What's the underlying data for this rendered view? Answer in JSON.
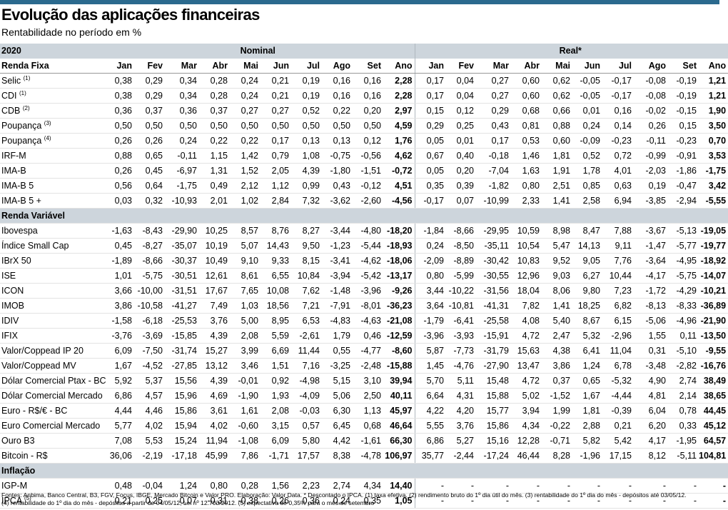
{
  "title": "Evolução das aplicações financeiras",
  "subtitle": "Rentabilidade no período em %",
  "year_label": "2020",
  "group_nominal": "Nominal",
  "group_real": "Real*",
  "months": [
    "Jan",
    "Fev",
    "Mar",
    "Abr",
    "Mai",
    "Jun",
    "Jul",
    "Ago",
    "Set",
    "Ano"
  ],
  "sections": [
    {
      "title": "Renda Fixa",
      "rows": [
        {
          "label": "Selic",
          "note": "(1)",
          "nominal": [
            "0,38",
            "0,29",
            "0,34",
            "0,28",
            "0,24",
            "0,21",
            "0,19",
            "0,16",
            "0,16",
            "2,28"
          ],
          "real": [
            "0,17",
            "0,04",
            "0,27",
            "0,60",
            "0,62",
            "-0,05",
            "-0,17",
            "-0,08",
            "-0,19",
            "1,21"
          ]
        },
        {
          "label": "CDI",
          "note": "(1)",
          "nominal": [
            "0,38",
            "0,29",
            "0,34",
            "0,28",
            "0,24",
            "0,21",
            "0,19",
            "0,16",
            "0,16",
            "2,28"
          ],
          "real": [
            "0,17",
            "0,04",
            "0,27",
            "0,60",
            "0,62",
            "-0,05",
            "-0,17",
            "-0,08",
            "-0,19",
            "1,21"
          ]
        },
        {
          "label": "CDB",
          "note": "(2)",
          "nominal": [
            "0,36",
            "0,37",
            "0,36",
            "0,37",
            "0,27",
            "0,27",
            "0,52",
            "0,22",
            "0,20",
            "2,97"
          ],
          "real": [
            "0,15",
            "0,12",
            "0,29",
            "0,68",
            "0,66",
            "0,01",
            "0,16",
            "-0,02",
            "-0,15",
            "1,90"
          ]
        },
        {
          "label": "Poupança",
          "note": "(3)",
          "nominal": [
            "0,50",
            "0,50",
            "0,50",
            "0,50",
            "0,50",
            "0,50",
            "0,50",
            "0,50",
            "0,50",
            "4,59"
          ],
          "real": [
            "0,29",
            "0,25",
            "0,43",
            "0,81",
            "0,88",
            "0,24",
            "0,14",
            "0,26",
            "0,15",
            "3,50"
          ]
        },
        {
          "label": "Poupança",
          "note": "(4)",
          "nominal": [
            "0,26",
            "0,26",
            "0,24",
            "0,22",
            "0,22",
            "0,17",
            "0,13",
            "0,13",
            "0,12",
            "1,76"
          ],
          "real": [
            "0,05",
            "0,01",
            "0,17",
            "0,53",
            "0,60",
            "-0,09",
            "-0,23",
            "-0,11",
            "-0,23",
            "0,70"
          ]
        },
        {
          "label": "IRF-M",
          "note": "",
          "nominal": [
            "0,88",
            "0,65",
            "-0,11",
            "1,15",
            "1,42",
            "0,79",
            "1,08",
            "-0,75",
            "-0,56",
            "4,62"
          ],
          "real": [
            "0,67",
            "0,40",
            "-0,18",
            "1,46",
            "1,81",
            "0,52",
            "0,72",
            "-0,99",
            "-0,91",
            "3,53"
          ]
        },
        {
          "label": "IMA-B",
          "note": "",
          "nominal": [
            "0,26",
            "0,45",
            "-6,97",
            "1,31",
            "1,52",
            "2,05",
            "4,39",
            "-1,80",
            "-1,51",
            "-0,72"
          ],
          "real": [
            "0,05",
            "0,20",
            "-7,04",
            "1,63",
            "1,91",
            "1,78",
            "4,01",
            "-2,03",
            "-1,86",
            "-1,75"
          ]
        },
        {
          "label": "IMA-B 5",
          "note": "",
          "nominal": [
            "0,56",
            "0,64",
            "-1,75",
            "0,49",
            "2,12",
            "1,12",
            "0,99",
            "0,43",
            "-0,12",
            "4,51"
          ],
          "real": [
            "0,35",
            "0,39",
            "-1,82",
            "0,80",
            "2,51",
            "0,85",
            "0,63",
            "0,19",
            "-0,47",
            "3,42"
          ]
        },
        {
          "label": "IMA-B 5 +",
          "note": "",
          "nominal": [
            "0,03",
            "0,32",
            "-10,93",
            "2,01",
            "1,02",
            "2,84",
            "7,32",
            "-3,62",
            "-2,60",
            "-4,56"
          ],
          "real": [
            "-0,17",
            "0,07",
            "-10,99",
            "2,33",
            "1,41",
            "2,58",
            "6,94",
            "-3,85",
            "-2,94",
            "-5,55"
          ]
        }
      ]
    },
    {
      "title": "Renda Variável",
      "rows": [
        {
          "label": "Ibovespa",
          "note": "",
          "nominal": [
            "-1,63",
            "-8,43",
            "-29,90",
            "10,25",
            "8,57",
            "8,76",
            "8,27",
            "-3,44",
            "-4,80",
            "-18,20"
          ],
          "real": [
            "-1,84",
            "-8,66",
            "-29,95",
            "10,59",
            "8,98",
            "8,47",
            "7,88",
            "-3,67",
            "-5,13",
            "-19,05"
          ]
        },
        {
          "label": "Índice Small Cap",
          "note": "",
          "nominal": [
            "0,45",
            "-8,27",
            "-35,07",
            "10,19",
            "5,07",
            "14,43",
            "9,50",
            "-1,23",
            "-5,44",
            "-18,93"
          ],
          "real": [
            "0,24",
            "-8,50",
            "-35,11",
            "10,54",
            "5,47",
            "14,13",
            "9,11",
            "-1,47",
            "-5,77",
            "-19,77"
          ]
        },
        {
          "label": "IBrX 50",
          "note": "",
          "nominal": [
            "-1,89",
            "-8,66",
            "-30,37",
            "10,49",
            "9,10",
            "9,33",
            "8,15",
            "-3,41",
            "-4,62",
            "-18,06"
          ],
          "real": [
            "-2,09",
            "-8,89",
            "-30,42",
            "10,83",
            "9,52",
            "9,05",
            "7,76",
            "-3,64",
            "-4,95",
            "-18,92"
          ]
        },
        {
          "label": "ISE",
          "note": "",
          "nominal": [
            "1,01",
            "-5,75",
            "-30,51",
            "12,61",
            "8,61",
            "6,55",
            "10,84",
            "-3,94",
            "-5,42",
            "-13,17"
          ],
          "real": [
            "0,80",
            "-5,99",
            "-30,55",
            "12,96",
            "9,03",
            "6,27",
            "10,44",
            "-4,17",
            "-5,75",
            "-14,07"
          ]
        },
        {
          "label": "ICON",
          "note": "",
          "nominal": [
            "3,66",
            "-10,00",
            "-31,51",
            "17,67",
            "7,65",
            "10,08",
            "7,62",
            "-1,48",
            "-3,96",
            "-9,26"
          ],
          "real": [
            "3,44",
            "-10,22",
            "-31,56",
            "18,04",
            "8,06",
            "9,80",
            "7,23",
            "-1,72",
            "-4,29",
            "-10,21"
          ]
        },
        {
          "label": "IMOB",
          "note": "",
          "nominal": [
            "3,86",
            "-10,58",
            "-41,27",
            "7,49",
            "1,03",
            "18,56",
            "7,21",
            "-7,91",
            "-8,01",
            "-36,23"
          ],
          "real": [
            "3,64",
            "-10,81",
            "-41,31",
            "7,82",
            "1,41",
            "18,25",
            "6,82",
            "-8,13",
            "-8,33",
            "-36,89"
          ]
        },
        {
          "label": "IDIV",
          "note": "",
          "nominal": [
            "-1,58",
            "-6,18",
            "-25,53",
            "3,76",
            "5,00",
            "8,95",
            "6,53",
            "-4,83",
            "-4,63",
            "-21,08"
          ],
          "real": [
            "-1,79",
            "-6,41",
            "-25,58",
            "4,08",
            "5,40",
            "8,67",
            "6,15",
            "-5,06",
            "-4,96",
            "-21,90"
          ]
        },
        {
          "label": "IFIX",
          "note": "",
          "nominal": [
            "-3,76",
            "-3,69",
            "-15,85",
            "4,39",
            "2,08",
            "5,59",
            "-2,61",
            "1,79",
            "0,46",
            "-12,59"
          ],
          "real": [
            "-3,96",
            "-3,93",
            "-15,91",
            "4,72",
            "2,47",
            "5,32",
            "-2,96",
            "1,55",
            "0,11",
            "-13,50"
          ]
        },
        {
          "label": "Valor/Coppead IP 20",
          "note": "",
          "nominal": [
            "6,09",
            "-7,50",
            "-31,74",
            "15,27",
            "3,99",
            "6,69",
            "11,44",
            "0,55",
            "-4,77",
            "-8,60"
          ],
          "real": [
            "5,87",
            "-7,73",
            "-31,79",
            "15,63",
            "4,38",
            "6,41",
            "11,04",
            "0,31",
            "-5,10",
            "-9,55"
          ]
        },
        {
          "label": "Valor/Coppead MV",
          "note": "",
          "nominal": [
            "1,67",
            "-4,52",
            "-27,85",
            "13,12",
            "3,46",
            "1,51",
            "7,16",
            "-3,25",
            "-2,48",
            "-15,88"
          ],
          "real": [
            "1,45",
            "-4,76",
            "-27,90",
            "13,47",
            "3,86",
            "1,24",
            "6,78",
            "-3,48",
            "-2,82",
            "-16,76"
          ]
        },
        {
          "label": "Dólar Comercial Ptax - BC",
          "note": "",
          "nominal": [
            "5,92",
            "5,37",
            "15,56",
            "4,39",
            "-0,01",
            "0,92",
            "-4,98",
            "5,15",
            "3,10",
            "39,94"
          ],
          "real": [
            "5,70",
            "5,11",
            "15,48",
            "4,72",
            "0,37",
            "0,65",
            "-5,32",
            "4,90",
            "2,74",
            "38,49"
          ]
        },
        {
          "label": "Dólar Comercial Mercado",
          "note": "",
          "nominal": [
            "6,86",
            "4,57",
            "15,96",
            "4,69",
            "-1,90",
            "1,93",
            "-4,09",
            "5,06",
            "2,50",
            "40,11"
          ],
          "real": [
            "6,64",
            "4,31",
            "15,88",
            "5,02",
            "-1,52",
            "1,67",
            "-4,44",
            "4,81",
            "2,14",
            "38,65"
          ]
        },
        {
          "label": "Euro - R$/€ - BC",
          "note": "",
          "nominal": [
            "4,44",
            "4,46",
            "15,86",
            "3,61",
            "1,61",
            "2,08",
            "-0,03",
            "6,30",
            "1,13",
            "45,97"
          ],
          "real": [
            "4,22",
            "4,20",
            "15,77",
            "3,94",
            "1,99",
            "1,81",
            "-0,39",
            "6,04",
            "0,78",
            "44,45"
          ]
        },
        {
          "label": "Euro Comercial Mercado",
          "note": "",
          "nominal": [
            "5,77",
            "4,02",
            "15,94",
            "4,02",
            "-0,60",
            "3,15",
            "0,57",
            "6,45",
            "0,68",
            "46,64"
          ],
          "real": [
            "5,55",
            "3,76",
            "15,86",
            "4,34",
            "-0,22",
            "2,88",
            "0,21",
            "6,20",
            "0,33",
            "45,12"
          ]
        },
        {
          "label": "Ouro B3",
          "note": "",
          "nominal": [
            "7,08",
            "5,53",
            "15,24",
            "11,94",
            "-1,08",
            "6,09",
            "5,80",
            "4,42",
            "-1,61",
            "66,30"
          ],
          "real": [
            "6,86",
            "5,27",
            "15,16",
            "12,28",
            "-0,71",
            "5,82",
            "5,42",
            "4,17",
            "-1,95",
            "64,57"
          ]
        },
        {
          "label": "Bitcoin - R$",
          "note": "",
          "nominal": [
            "36,06",
            "-2,19",
            "-17,18",
            "45,99",
            "7,86",
            "-1,71",
            "17,57",
            "8,38",
            "-4,78",
            "106,97"
          ],
          "real": [
            "35,77",
            "-2,44",
            "-17,24",
            "46,44",
            "8,28",
            "-1,96",
            "17,15",
            "8,12",
            "-5,11",
            "104,81"
          ]
        }
      ]
    },
    {
      "title": "Inflação",
      "rows": [
        {
          "label": "IGP-M",
          "note": "",
          "nominal": [
            "0,48",
            "-0,04",
            "1,24",
            "0,80",
            "0,28",
            "1,56",
            "2,23",
            "2,74",
            "4,34",
            "14,40"
          ],
          "real": [
            "-",
            "-",
            "-",
            "-",
            "-",
            "-",
            "-",
            "-",
            "-",
            "-"
          ]
        },
        {
          "label": "IPCA",
          "note": "(5)",
          "nominal": [
            "0,21",
            "0,25",
            "0,07",
            "-0,31",
            "-0,38",
            "0,26",
            "0,36",
            "0,24",
            "0,35",
            "1,05"
          ],
          "real": [
            "-",
            "-",
            "-",
            "-",
            "-",
            "-",
            "-",
            "-",
            "-",
            "-"
          ]
        }
      ]
    }
  ],
  "footer": [
    "Fontes: Anbima, Banco Central, B3, FGV, Focus, IBGE, Mercado Bitcoin e Valor PRO. Elaboração: Valor Data. * Descontado o IPCA. (1) taxa efetiva. (2) rendimento bruto do 1º dia útil do mês. (3) rentabilidade do 1º dia do mês - depósitos até 03/05/12.",
    "(4)  rentabilidade do 1º dia do mês - depósitos a partir de 04/05/12;  Lei nº 12.703/2012. (5) expectativa de 0,35% para o mês de setembro"
  ],
  "colors": {
    "top_bar": "#2b6a8e",
    "header_band": "#cdd5dc"
  }
}
